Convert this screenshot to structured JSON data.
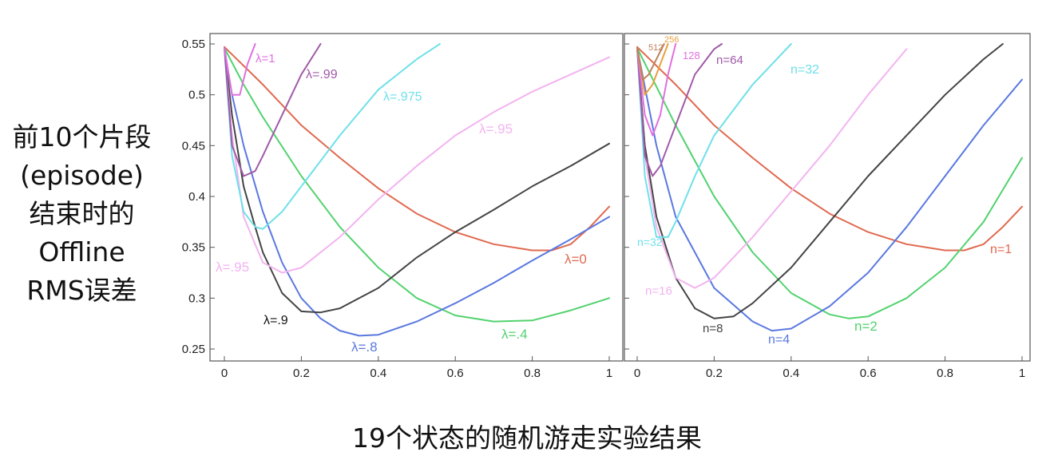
{
  "ylabel_lines": [
    "前10个片段",
    "(episode)",
    "结束时的",
    "Offline",
    "RMS误差"
  ],
  "caption": "19个状态的随机游走实验结果",
  "chart_data": [
    {
      "type": "line",
      "panel": "left",
      "xlim": [
        0,
        1
      ],
      "ylim": [
        0.24,
        0.55
      ],
      "xticks": [
        "0",
        "0.2",
        "0.4",
        "0.6",
        "0.8",
        "1"
      ],
      "yticks": [
        "0.55",
        "0.5",
        "0.45",
        "0.4",
        "0.35",
        "0.3",
        "0.25"
      ],
      "series": [
        {
          "name": "λ=0",
          "color": "#e0694f",
          "x": [
            0,
            0.1,
            0.2,
            0.3,
            0.4,
            0.5,
            0.6,
            0.7,
            0.8,
            0.85,
            0.9,
            0.95,
            1.0
          ],
          "y": [
            0.547,
            0.51,
            0.47,
            0.438,
            0.408,
            0.383,
            0.365,
            0.353,
            0.347,
            0.347,
            0.353,
            0.37,
            0.39
          ]
        },
        {
          "name": "λ=.4",
          "color": "#52d26e",
          "x": [
            0,
            0.05,
            0.1,
            0.2,
            0.3,
            0.4,
            0.5,
            0.6,
            0.7,
            0.8,
            0.9,
            1.0
          ],
          "y": [
            0.546,
            0.51,
            0.478,
            0.42,
            0.37,
            0.33,
            0.3,
            0.283,
            0.277,
            0.278,
            0.288,
            0.3
          ]
        },
        {
          "name": "λ=.8",
          "color": "#5a78e0",
          "x": [
            0,
            0.02,
            0.05,
            0.1,
            0.15,
            0.2,
            0.25,
            0.3,
            0.35,
            0.4,
            0.5,
            0.6,
            0.7,
            0.8,
            0.9,
            1.0
          ],
          "y": [
            0.546,
            0.5,
            0.45,
            0.385,
            0.335,
            0.3,
            0.28,
            0.268,
            0.263,
            0.264,
            0.277,
            0.295,
            0.315,
            0.337,
            0.358,
            0.38
          ]
        },
        {
          "name": "λ=.9",
          "color": "#444444",
          "x": [
            0,
            0.02,
            0.05,
            0.08,
            0.1,
            0.15,
            0.2,
            0.25,
            0.3,
            0.4,
            0.5,
            0.6,
            0.7,
            0.8,
            0.9,
            1.0
          ],
          "y": [
            0.546,
            0.48,
            0.41,
            0.37,
            0.345,
            0.305,
            0.287,
            0.286,
            0.29,
            0.31,
            0.34,
            0.365,
            0.387,
            0.41,
            0.43,
            0.452
          ]
        },
        {
          "name": "λ=.95",
          "color": "#f2b4f0",
          "x": [
            0,
            0.02,
            0.05,
            0.1,
            0.15,
            0.2,
            0.3,
            0.4,
            0.5,
            0.6,
            0.7,
            0.8,
            0.9,
            1.0
          ],
          "y": [
            0.546,
            0.46,
            0.38,
            0.335,
            0.325,
            0.33,
            0.36,
            0.397,
            0.43,
            0.46,
            0.483,
            0.503,
            0.52,
            0.537
          ]
        },
        {
          "name": "λ=.975",
          "color": "#6fe0ea",
          "x": [
            0,
            0.02,
            0.05,
            0.08,
            0.1,
            0.15,
            0.2,
            0.3,
            0.4,
            0.5,
            0.56
          ],
          "y": [
            0.546,
            0.44,
            0.385,
            0.37,
            0.368,
            0.385,
            0.41,
            0.46,
            0.505,
            0.535,
            0.55
          ]
        },
        {
          "name": "λ=.99",
          "color": "#a05aa8",
          "x": [
            0,
            0.02,
            0.05,
            0.08,
            0.1,
            0.15,
            0.2,
            0.25
          ],
          "y": [
            0.546,
            0.45,
            0.42,
            0.425,
            0.44,
            0.48,
            0.52,
            0.55
          ]
        },
        {
          "name": "λ=1",
          "color": "#e070e0",
          "x": [
            0,
            0.02,
            0.04,
            0.06,
            0.08
          ],
          "y": [
            0.546,
            0.5,
            0.5,
            0.53,
            0.55
          ]
        }
      ],
      "labels": [
        {
          "text": "λ=1",
          "series": "λ=1"
        },
        {
          "text": "λ=.99",
          "series": "λ=.99"
        },
        {
          "text": "λ=.975",
          "series": "λ=.975"
        },
        {
          "text": "λ=.95",
          "series": "λ=.95"
        },
        {
          "text": "λ=.95",
          "series": "λ=.95"
        },
        {
          "text": "λ=0",
          "series": "λ=0"
        },
        {
          "text": "λ=.9",
          "series": "λ=.9"
        },
        {
          "text": "λ=.8",
          "series": "λ=.8"
        },
        {
          "text": "λ=.4",
          "series": "λ=.4"
        }
      ]
    },
    {
      "type": "line",
      "panel": "right",
      "xlim": [
        0,
        1
      ],
      "ylim": [
        0.24,
        0.55
      ],
      "xticks": [
        "0",
        "0.2",
        "0.4",
        "0.6",
        "0.8",
        "1"
      ],
      "yticks": [],
      "series": [
        {
          "name": "n=1",
          "color": "#e0694f",
          "x": [
            0,
            0.1,
            0.2,
            0.3,
            0.4,
            0.5,
            0.6,
            0.7,
            0.8,
            0.85,
            0.9,
            0.95,
            1.0
          ],
          "y": [
            0.547,
            0.51,
            0.47,
            0.438,
            0.408,
            0.383,
            0.365,
            0.353,
            0.347,
            0.347,
            0.353,
            0.37,
            0.39
          ]
        },
        {
          "name": "n=2",
          "color": "#52d26e",
          "x": [
            0,
            0.1,
            0.2,
            0.3,
            0.4,
            0.5,
            0.55,
            0.6,
            0.7,
            0.8,
            0.9,
            1.0
          ],
          "y": [
            0.546,
            0.47,
            0.4,
            0.345,
            0.305,
            0.284,
            0.28,
            0.282,
            0.3,
            0.33,
            0.375,
            0.438
          ]
        },
        {
          "name": "n=4",
          "color": "#5a78e0",
          "x": [
            0,
            0.05,
            0.1,
            0.2,
            0.3,
            0.35,
            0.4,
            0.5,
            0.6,
            0.7,
            0.8,
            0.9,
            1.0
          ],
          "y": [
            0.546,
            0.45,
            0.38,
            0.31,
            0.277,
            0.268,
            0.27,
            0.292,
            0.325,
            0.37,
            0.42,
            0.47,
            0.515
          ]
        },
        {
          "name": "n=8",
          "color": "#444444",
          "x": [
            0,
            0.02,
            0.05,
            0.1,
            0.15,
            0.2,
            0.25,
            0.3,
            0.4,
            0.5,
            0.6,
            0.7,
            0.8,
            0.9,
            0.95
          ],
          "y": [
            0.546,
            0.45,
            0.38,
            0.32,
            0.29,
            0.28,
            0.282,
            0.295,
            0.33,
            0.375,
            0.42,
            0.46,
            0.5,
            0.535,
            0.55
          ]
        },
        {
          "name": "n=16",
          "color": "#f2b4f0",
          "x": [
            0,
            0.02,
            0.05,
            0.1,
            0.15,
            0.2,
            0.3,
            0.4,
            0.5,
            0.6,
            0.7
          ],
          "y": [
            0.546,
            0.44,
            0.37,
            0.32,
            0.31,
            0.32,
            0.36,
            0.405,
            0.45,
            0.5,
            0.545
          ]
        },
        {
          "name": "n=32",
          "color": "#6fe0ea",
          "x": [
            0,
            0.02,
            0.05,
            0.08,
            0.1,
            0.15,
            0.2,
            0.3,
            0.4
          ],
          "y": [
            0.546,
            0.42,
            0.36,
            0.36,
            0.375,
            0.42,
            0.46,
            0.51,
            0.55
          ]
        },
        {
          "name": "n=64",
          "color": "#a05aa8",
          "x": [
            0,
            0.02,
            0.04,
            0.06,
            0.08,
            0.1,
            0.15,
            0.2,
            0.22
          ],
          "y": [
            0.546,
            0.44,
            0.42,
            0.43,
            0.45,
            0.47,
            0.52,
            0.545,
            0.55
          ]
        },
        {
          "name": "128",
          "color": "#e070e0",
          "x": [
            0,
            0.02,
            0.04,
            0.06,
            0.08,
            0.1
          ],
          "y": [
            0.546,
            0.48,
            0.46,
            0.48,
            0.52,
            0.55
          ]
        },
        {
          "name": "256",
          "color": "#e8a040",
          "x": [
            0,
            0.02,
            0.04,
            0.06,
            0.08
          ],
          "y": [
            0.546,
            0.5,
            0.51,
            0.53,
            0.55
          ]
        },
        {
          "name": "512",
          "color": "#c0805a",
          "x": [
            0,
            0.015,
            0.03,
            0.05,
            0.07
          ],
          "y": [
            0.546,
            0.515,
            0.52,
            0.535,
            0.55
          ]
        }
      ],
      "labels": [
        {
          "text": "512",
          "series": "512"
        },
        {
          "text": "256",
          "series": "256"
        },
        {
          "text": "128",
          "series": "128"
        },
        {
          "text": "n=64",
          "series": "n=64"
        },
        {
          "text": "n=32",
          "series": "n=32"
        },
        {
          "text": "n=32",
          "series": "n=32"
        },
        {
          "text": "n=16",
          "series": "n=16"
        },
        {
          "text": "n=8",
          "series": "n=8"
        },
        {
          "text": "n=4",
          "series": "n=4"
        },
        {
          "text": "n=2",
          "series": "n=2"
        },
        {
          "text": "n=1",
          "series": "n=1"
        }
      ]
    }
  ]
}
